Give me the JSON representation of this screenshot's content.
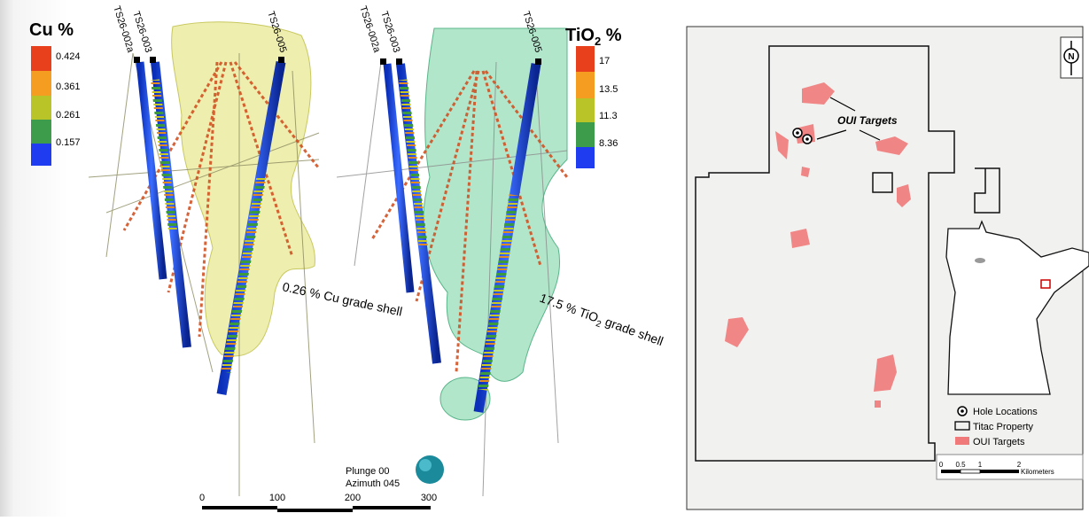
{
  "left_panel": {
    "cu_legend": {
      "title": "Cu %",
      "labels": [
        "0.424",
        "0.361",
        "0.261",
        "0.157"
      ]
    },
    "tio2_legend": {
      "title": {
        "base": "TiO",
        "sub": "2",
        "unit": " %"
      },
      "labels": [
        "17",
        "13.5",
        "11.3",
        "8.36"
      ]
    },
    "cu_holes": [
      "TS26-002a",
      "TS26-003",
      "TS26-005"
    ],
    "tio2_holes": [
      "TS26-002a",
      "TS26-003",
      "TS26-005"
    ],
    "cu_shell_label": "0.26 % Cu grade shell",
    "tio2_shell_label": {
      "before": "17.5 % TiO",
      "sub": "2",
      "after": " grade shell"
    },
    "view": {
      "plunge": "Plunge 00",
      "azimuth": "Azimuth 045"
    },
    "scale": [
      "0",
      "100",
      "200",
      "300"
    ]
  },
  "map": {
    "north": "N",
    "callout": "OUI Targets",
    "legend": [
      "Hole Locations",
      "Titac Property",
      "OUI Targets"
    ],
    "scale": [
      "0",
      "0.5",
      "1",
      "2"
    ],
    "scale_unit": "Kilometers"
  }
}
